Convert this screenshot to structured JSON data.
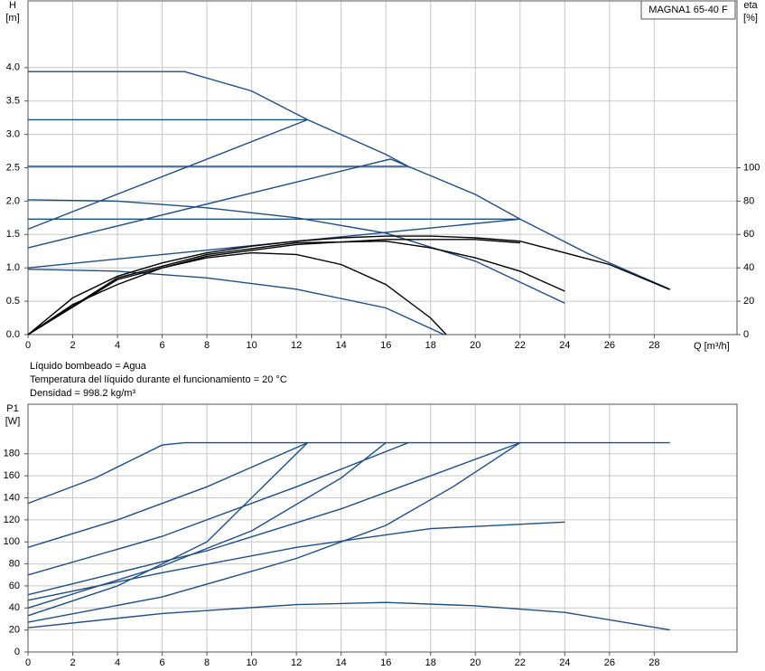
{
  "chart_data": [
    {
      "type": "line",
      "model": "MAGNA1 65-40 F",
      "ylabel": [
        "H",
        "[m]"
      ],
      "y2label": [
        "eta",
        "[%]"
      ],
      "xlabel": "Q [m³/h]",
      "xlim": [
        0,
        31.7
      ],
      "xticks": [
        0,
        2,
        4,
        6,
        8,
        10,
        12,
        14,
        16,
        18,
        20,
        22,
        24,
        26,
        28
      ],
      "ylim": [
        0,
        5
      ],
      "yticks": [
        {
          "value": 0,
          "label": "0.0"
        },
        {
          "value": 0.5,
          "label": "0.5"
        },
        {
          "value": 1,
          "label": "1.0"
        },
        {
          "value": 1.5,
          "label": "1.5"
        },
        {
          "value": 2,
          "label": "2.0"
        },
        {
          "value": 2.5,
          "label": "2.5"
        },
        {
          "value": 3,
          "label": "3.0"
        },
        {
          "value": 3.5,
          "label": "3.5"
        },
        {
          "value": 4,
          "label": "4.0"
        }
      ],
      "y2lim": [
        0,
        200
      ],
      "y2ticks": [
        0,
        20,
        40,
        60,
        80,
        100
      ],
      "grid": true,
      "series": [
        {
          "color": "#1f4e85",
          "x": [
            0,
            7,
            10,
            12.5,
            16,
            17,
            20,
            22,
            25,
            28.7
          ],
          "values": [
            3.94,
            3.94,
            3.65,
            3.22,
            2.7,
            2.52,
            2.1,
            1.73,
            1.22,
            0.68
          ]
        },
        {
          "color": "#1f4e85",
          "x": [
            0,
            12.5
          ],
          "values": [
            3.22,
            3.22
          ]
        },
        {
          "color": "#1f4e85",
          "x": [
            0,
            17
          ],
          "values": [
            2.52,
            2.52
          ]
        },
        {
          "color": "#1f4e85",
          "x": [
            0,
            22
          ],
          "values": [
            1.73,
            1.73
          ]
        },
        {
          "color": "#1f4e85",
          "x": [
            0,
            12.5
          ],
          "values": [
            1.58,
            3.22
          ]
        },
        {
          "color": "#1f4e85",
          "x": [
            0,
            16.2,
            17
          ],
          "values": [
            1.3,
            2.63,
            2.52
          ]
        },
        {
          "color": "#1f4e85",
          "x": [
            0,
            22
          ],
          "values": [
            1.0,
            1.73
          ]
        },
        {
          "color": "#1f4e85",
          "x": [
            0,
            4,
            8,
            12,
            16,
            20,
            24
          ],
          "values": [
            2.02,
            2.0,
            1.9,
            1.75,
            1.52,
            1.1,
            0.47
          ]
        },
        {
          "color": "#1f4e85",
          "x": [
            0,
            4,
            8,
            12,
            16,
            18.6
          ],
          "values": [
            0.98,
            0.95,
            0.85,
            0.68,
            0.4,
            0
          ]
        },
        {
          "color": "#000000",
          "axis": "y2",
          "x": [
            0,
            2,
            4,
            6,
            8,
            10,
            12,
            14,
            16,
            18,
            20,
            22,
            24,
            26,
            28.7
          ],
          "values": [
            0,
            22,
            35,
            43,
            49,
            53,
            56,
            58,
            59,
            59,
            58,
            56,
            49,
            42,
            27
          ]
        },
        {
          "color": "#000000",
          "axis": "y2",
          "x": [
            0,
            4,
            8,
            12,
            16,
            18,
            20,
            22,
            24
          ],
          "values": [
            0,
            34,
            48,
            55,
            56,
            52,
            46,
            38,
            26
          ]
        },
        {
          "color": "#000000",
          "axis": "y2",
          "x": [
            0,
            4,
            8,
            12,
            16,
            20,
            22
          ],
          "values": [
            0,
            33,
            47,
            54,
            57,
            57,
            55
          ]
        },
        {
          "color": "#000000",
          "axis": "y2",
          "x": [
            0,
            2,
            4,
            6,
            8,
            10,
            12,
            14,
            16,
            18,
            18.7
          ],
          "values": [
            0,
            18,
            30,
            40,
            46,
            49,
            48,
            42,
            30,
            10,
            0
          ]
        }
      ]
    },
    {
      "type": "line",
      "notes": [
        "Líquido bombeado = Agua",
        "Temperatura del líquido durante el funcionamiento = 20 °C",
        "Densidad = 998.2 kg/m³"
      ],
      "ylabel": [
        "P1",
        "[W]"
      ],
      "xlim": [
        0,
        31.7
      ],
      "xticks": [
        0,
        2,
        4,
        6,
        8,
        10,
        12,
        14,
        16,
        18,
        20,
        22,
        24,
        26,
        28
      ],
      "ylim": [
        0,
        225
      ],
      "yticks": [
        0,
        20,
        40,
        60,
        80,
        100,
        120,
        140,
        160,
        180
      ],
      "grid": true,
      "series": [
        {
          "color": "#1f4e85",
          "x": [
            0,
            3,
            6,
            7,
            28.7
          ],
          "values": [
            135,
            158,
            188,
            190,
            190
          ]
        },
        {
          "color": "#1f4e85",
          "x": [
            0,
            4,
            8,
            12.5
          ],
          "values": [
            95,
            120,
            150,
            190
          ]
        },
        {
          "color": "#1f4e85",
          "x": [
            0,
            4,
            8,
            12.5
          ],
          "values": [
            33,
            60,
            100,
            190
          ]
        },
        {
          "color": "#1f4e85",
          "x": [
            0,
            6,
            12,
            17
          ],
          "values": [
            70,
            105,
            150,
            190
          ]
        },
        {
          "color": "#1f4e85",
          "x": [
            0,
            6,
            10,
            14,
            16
          ],
          "values": [
            40,
            78,
            110,
            158,
            190
          ]
        },
        {
          "color": "#1f4e85",
          "x": [
            0,
            8,
            14,
            18,
            22
          ],
          "values": [
            52,
            92,
            130,
            160,
            190
          ]
        },
        {
          "color": "#1f4e85",
          "x": [
            0,
            6,
            12,
            16,
            19,
            22
          ],
          "values": [
            27,
            50,
            85,
            115,
            150,
            190
          ]
        },
        {
          "color": "#1f4e85",
          "x": [
            0,
            6,
            12,
            18,
            24
          ],
          "values": [
            47,
            72,
            95,
            112,
            118
          ]
        },
        {
          "color": "#1f4e85",
          "x": [
            0,
            6,
            12,
            16,
            20,
            24,
            28.7
          ],
          "values": [
            22,
            35,
            43,
            45,
            42,
            36,
            20
          ]
        }
      ]
    }
  ]
}
